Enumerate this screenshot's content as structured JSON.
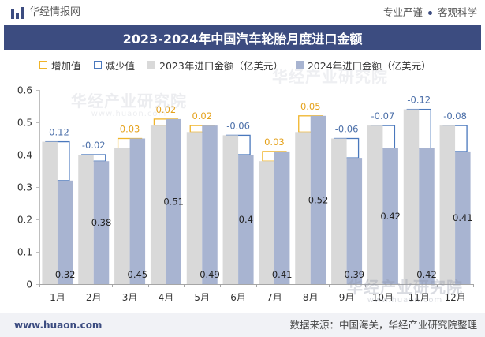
{
  "header": {
    "logo_icon": "huajing-logo-icon",
    "brand": "华经情报网",
    "slogan_left": "专业严谨",
    "slogan_right": "客观科学"
  },
  "colors": {
    "title_bg": "#3c4c80",
    "y2023": "#d9d9d9",
    "y2024": "#a8b4d1",
    "increase": "#f0b429",
    "decrease": "#4a78bd",
    "increase_text": "#e5a21c",
    "decrease_text": "#4a6ea8"
  },
  "chart_data": {
    "type": "bar",
    "title": "2023-2024年中国汽车轮胎月度进口金额",
    "categories": [
      "1月",
      "2月",
      "3月",
      "4月",
      "5月",
      "6月",
      "7月",
      "8月",
      "9月",
      "10月",
      "11月",
      "12月"
    ],
    "series": [
      {
        "name": "2023年进口金额（亿美元）",
        "values": [
          0.44,
          0.4,
          0.42,
          0.49,
          0.47,
          0.46,
          0.38,
          0.47,
          0.45,
          0.49,
          0.54,
          0.49
        ]
      },
      {
        "name": "2024年进口金额（亿美元）",
        "values": [
          0.32,
          0.38,
          0.45,
          0.51,
          0.49,
          0.4,
          0.41,
          0.52,
          0.39,
          0.42,
          0.42,
          0.41
        ]
      }
    ],
    "change": {
      "increase_label": "增加值",
      "decrease_label": "减少值",
      "values": [
        -0.12,
        -0.02,
        0.03,
        0.02,
        0.02,
        -0.06,
        0.03,
        0.05,
        -0.06,
        -0.07,
        -0.12,
        -0.08
      ]
    },
    "yticks": [
      0,
      0.1,
      0.2,
      0.3,
      0.4,
      0.5,
      0.6
    ],
    "ylim": [
      0,
      0.6
    ],
    "grid": false,
    "legend_position": "top"
  },
  "watermark": {
    "name": "华经产业研究院",
    "url": "www.huaon.com"
  },
  "footer": {
    "website": "www.huaon.com",
    "source": "数据来源：中国海关，华经产业研究院整理"
  }
}
